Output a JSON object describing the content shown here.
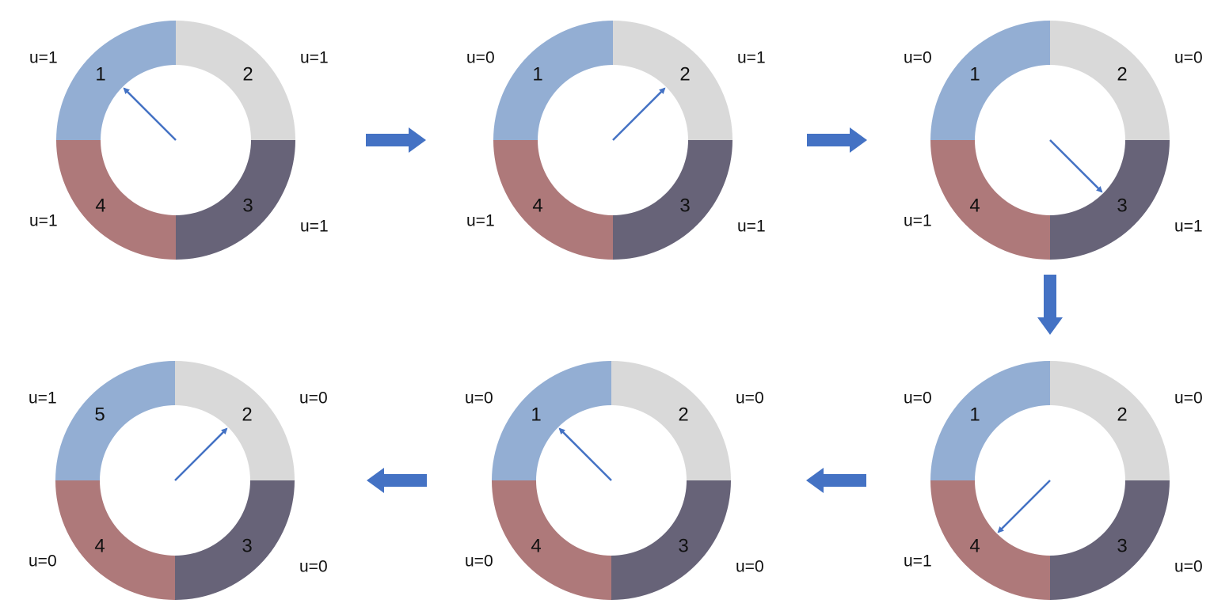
{
  "colors": {
    "q1": "#93AED3",
    "q2": "#D9D9D9",
    "q3": "#676378",
    "q4": "#AE797A",
    "pointer": "#4472C4",
    "flow_arrow": "#4472C4"
  },
  "clocks": [
    {
      "id": "clock-1",
      "slots": [
        "1",
        "2",
        "3",
        "4"
      ],
      "u": [
        "u=1",
        "u=1",
        "u=1",
        "u=1"
      ],
      "pointer_slot": 1
    },
    {
      "id": "clock-2",
      "slots": [
        "1",
        "2",
        "3",
        "4"
      ],
      "u": [
        "u=0",
        "u=1",
        "u=1",
        "u=1"
      ],
      "pointer_slot": 2
    },
    {
      "id": "clock-3",
      "slots": [
        "1",
        "2",
        "3",
        "4"
      ],
      "u": [
        "u=0",
        "u=0",
        "u=1",
        "u=1"
      ],
      "pointer_slot": 3
    },
    {
      "id": "clock-4",
      "slots": [
        "1",
        "2",
        "3",
        "4"
      ],
      "u": [
        "u=0",
        "u=0",
        "u=0",
        "u=1"
      ],
      "pointer_slot": 4
    },
    {
      "id": "clock-5",
      "slots": [
        "1",
        "2",
        "3",
        "4"
      ],
      "u": [
        "u=0",
        "u=0",
        "u=0",
        "u=0"
      ],
      "pointer_slot": 1
    },
    {
      "id": "clock-6",
      "slots": [
        "5",
        "2",
        "3",
        "4"
      ],
      "u": [
        "u=1",
        "u=0",
        "u=0",
        "u=0"
      ],
      "pointer_slot": 2
    }
  ],
  "flow_arrows": [
    {
      "from": "clock-1",
      "to": "clock-2",
      "direction": "right"
    },
    {
      "from": "clock-2",
      "to": "clock-3",
      "direction": "right"
    },
    {
      "from": "clock-3",
      "to": "clock-4",
      "direction": "down"
    },
    {
      "from": "clock-4",
      "to": "clock-5",
      "direction": "left"
    },
    {
      "from": "clock-5",
      "to": "clock-6",
      "direction": "left"
    }
  ]
}
